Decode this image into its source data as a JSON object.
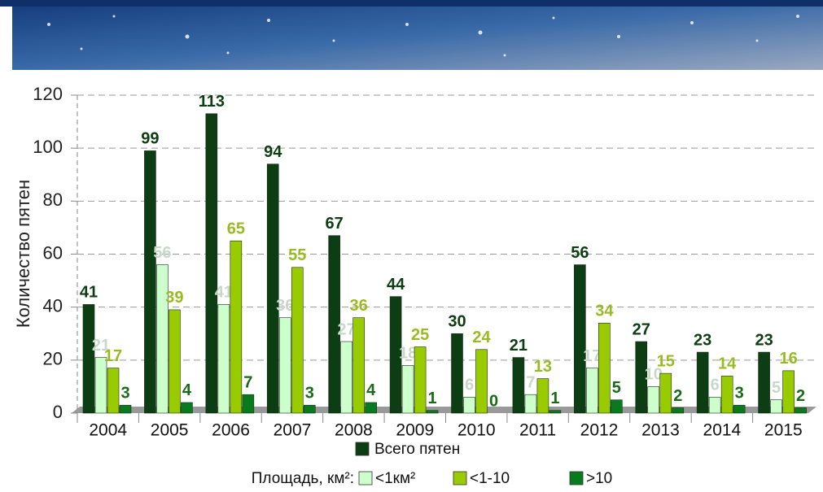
{
  "chart_data": {
    "type": "bar",
    "y_label": "Количество пятен",
    "categories": [
      "2004",
      "2005",
      "2006",
      "2007",
      "2008",
      "2009",
      "2010",
      "2011",
      "2012",
      "2013",
      "2014",
      "2015"
    ],
    "series": [
      {
        "name": "Всего пятен",
        "color": "#0d3d12",
        "label_color": "#0d3d12",
        "values": [
          41,
          99,
          113,
          94,
          67,
          44,
          30,
          21,
          56,
          27,
          23,
          23
        ]
      },
      {
        "name": "<1км²",
        "color": "#ccffcc",
        "label_color": "#c8d8c8",
        "values": [
          21,
          56,
          41,
          36,
          27,
          18,
          6,
          7,
          17,
          10,
          6,
          5
        ]
      },
      {
        "name": "<1-10",
        "color": "#99cc00",
        "label_color": "#99bb22",
        "values": [
          17,
          39,
          65,
          55,
          36,
          25,
          24,
          13,
          34,
          15,
          14,
          16
        ]
      },
      {
        "name": ">10",
        "color": "#0a7a1e",
        "label_color": "#1a6a1a",
        "values": [
          3,
          4,
          7,
          3,
          4,
          1,
          0,
          1,
          5,
          2,
          3,
          2
        ]
      }
    ],
    "legend_title": "Площадь, км²:",
    "ylim": [
      0,
      120
    ],
    "yticks": [
      0,
      20,
      40,
      60,
      80,
      100,
      120
    ],
    "grid": true
  }
}
